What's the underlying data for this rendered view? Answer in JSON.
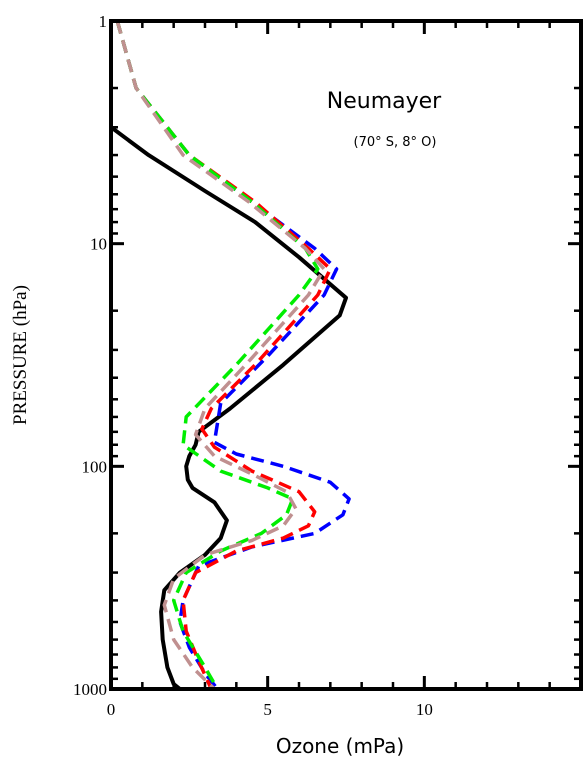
{
  "chart_data": {
    "type": "line",
    "title": "Neumayer",
    "subtitle": "(70° S, 8° O)",
    "xlabel": "Ozone (mPa)",
    "ylabel": "PRESSURE (hPa)",
    "xlim": [
      0,
      15
    ],
    "ylim": [
      1000,
      1
    ],
    "yscale": "log",
    "xticks": [
      0,
      5,
      10
    ],
    "yticks": [
      1,
      10,
      100,
      1000
    ],
    "series": [
      {
        "color": "#000000",
        "style": "solid",
        "x": [
          0.0,
          1.2,
          3.0,
          4.6,
          6.0,
          7.5,
          7.3,
          5.5,
          3.8,
          2.8,
          2.7,
          2.5,
          2.4,
          2.45,
          2.6,
          3.3,
          3.7,
          3.5,
          3.0,
          2.2,
          1.7,
          1.6,
          1.65,
          1.8,
          2.0,
          2.2
        ],
        "y": [
          3.0,
          4.0,
          5.8,
          8.0,
          11.5,
          17.5,
          21,
          35,
          55,
          70,
          80,
          90,
          100,
          115,
          125,
          145,
          175,
          210,
          250,
          300,
          360,
          450,
          600,
          800,
          950,
          1000
        ]
      },
      {
        "color": "#0000ff",
        "style": "dashed",
        "x": [
          0.2,
          0.8,
          2.5,
          4.5,
          6.5,
          7.2,
          6.8,
          5.0,
          3.5,
          3.3,
          4.0,
          5.5,
          7.0,
          7.6,
          7.4,
          6.5,
          4.5,
          2.8,
          2.3,
          2.2,
          2.5,
          3.0,
          3.4
        ],
        "y": [
          1.0,
          2.0,
          4.0,
          6.5,
          10.5,
          13,
          17,
          32,
          52,
          78,
          88,
          100,
          118,
          140,
          165,
          200,
          230,
          280,
          400,
          500,
          650,
          850,
          1000
        ]
      },
      {
        "color": "#ff0000",
        "style": "dashed",
        "x": [
          0.2,
          0.8,
          2.5,
          4.6,
          6.3,
          7.0,
          6.6,
          4.6,
          3.2,
          2.9,
          3.3,
          4.5,
          6.0,
          6.5,
          6.3,
          5.5,
          4.0,
          2.7,
          2.3,
          2.4,
          2.8,
          3.2
        ],
        "y": [
          1.0,
          2.0,
          4.0,
          6.5,
          10.5,
          13,
          17,
          35,
          55,
          68,
          82,
          105,
          130,
          160,
          185,
          210,
          240,
          300,
          400,
          550,
          750,
          1000
        ]
      },
      {
        "color": "#00ee00",
        "style": "dashed",
        "x": [
          0.2,
          0.8,
          2.5,
          4.5,
          6.2,
          6.6,
          6.0,
          4.0,
          2.4,
          2.3,
          3.5,
          5.0,
          5.8,
          5.6,
          4.8,
          3.5,
          2.4,
          2.0,
          2.3,
          3.0,
          3.4
        ],
        "y": [
          1.0,
          2.0,
          4.0,
          6.5,
          10.5,
          13,
          17,
          35,
          60,
          80,
          105,
          125,
          140,
          165,
          200,
          240,
          300,
          400,
          550,
          800,
          1000
        ]
      },
      {
        "color": "#c09090",
        "style": "dashed",
        "x": [
          0.2,
          0.8,
          2.3,
          4.4,
          6.2,
          6.8,
          6.3,
          4.3,
          3.0,
          2.7,
          3.3,
          4.6,
          5.6,
          5.9,
          5.5,
          4.5,
          3.0,
          2.0,
          1.7,
          2.0,
          2.6,
          3.3
        ],
        "y": [
          1.0,
          2.0,
          4.0,
          6.5,
          10.5,
          13,
          17,
          35,
          55,
          72,
          90,
          110,
          130,
          155,
          185,
          215,
          250,
          320,
          420,
          600,
          800,
          1000
        ]
      }
    ]
  }
}
